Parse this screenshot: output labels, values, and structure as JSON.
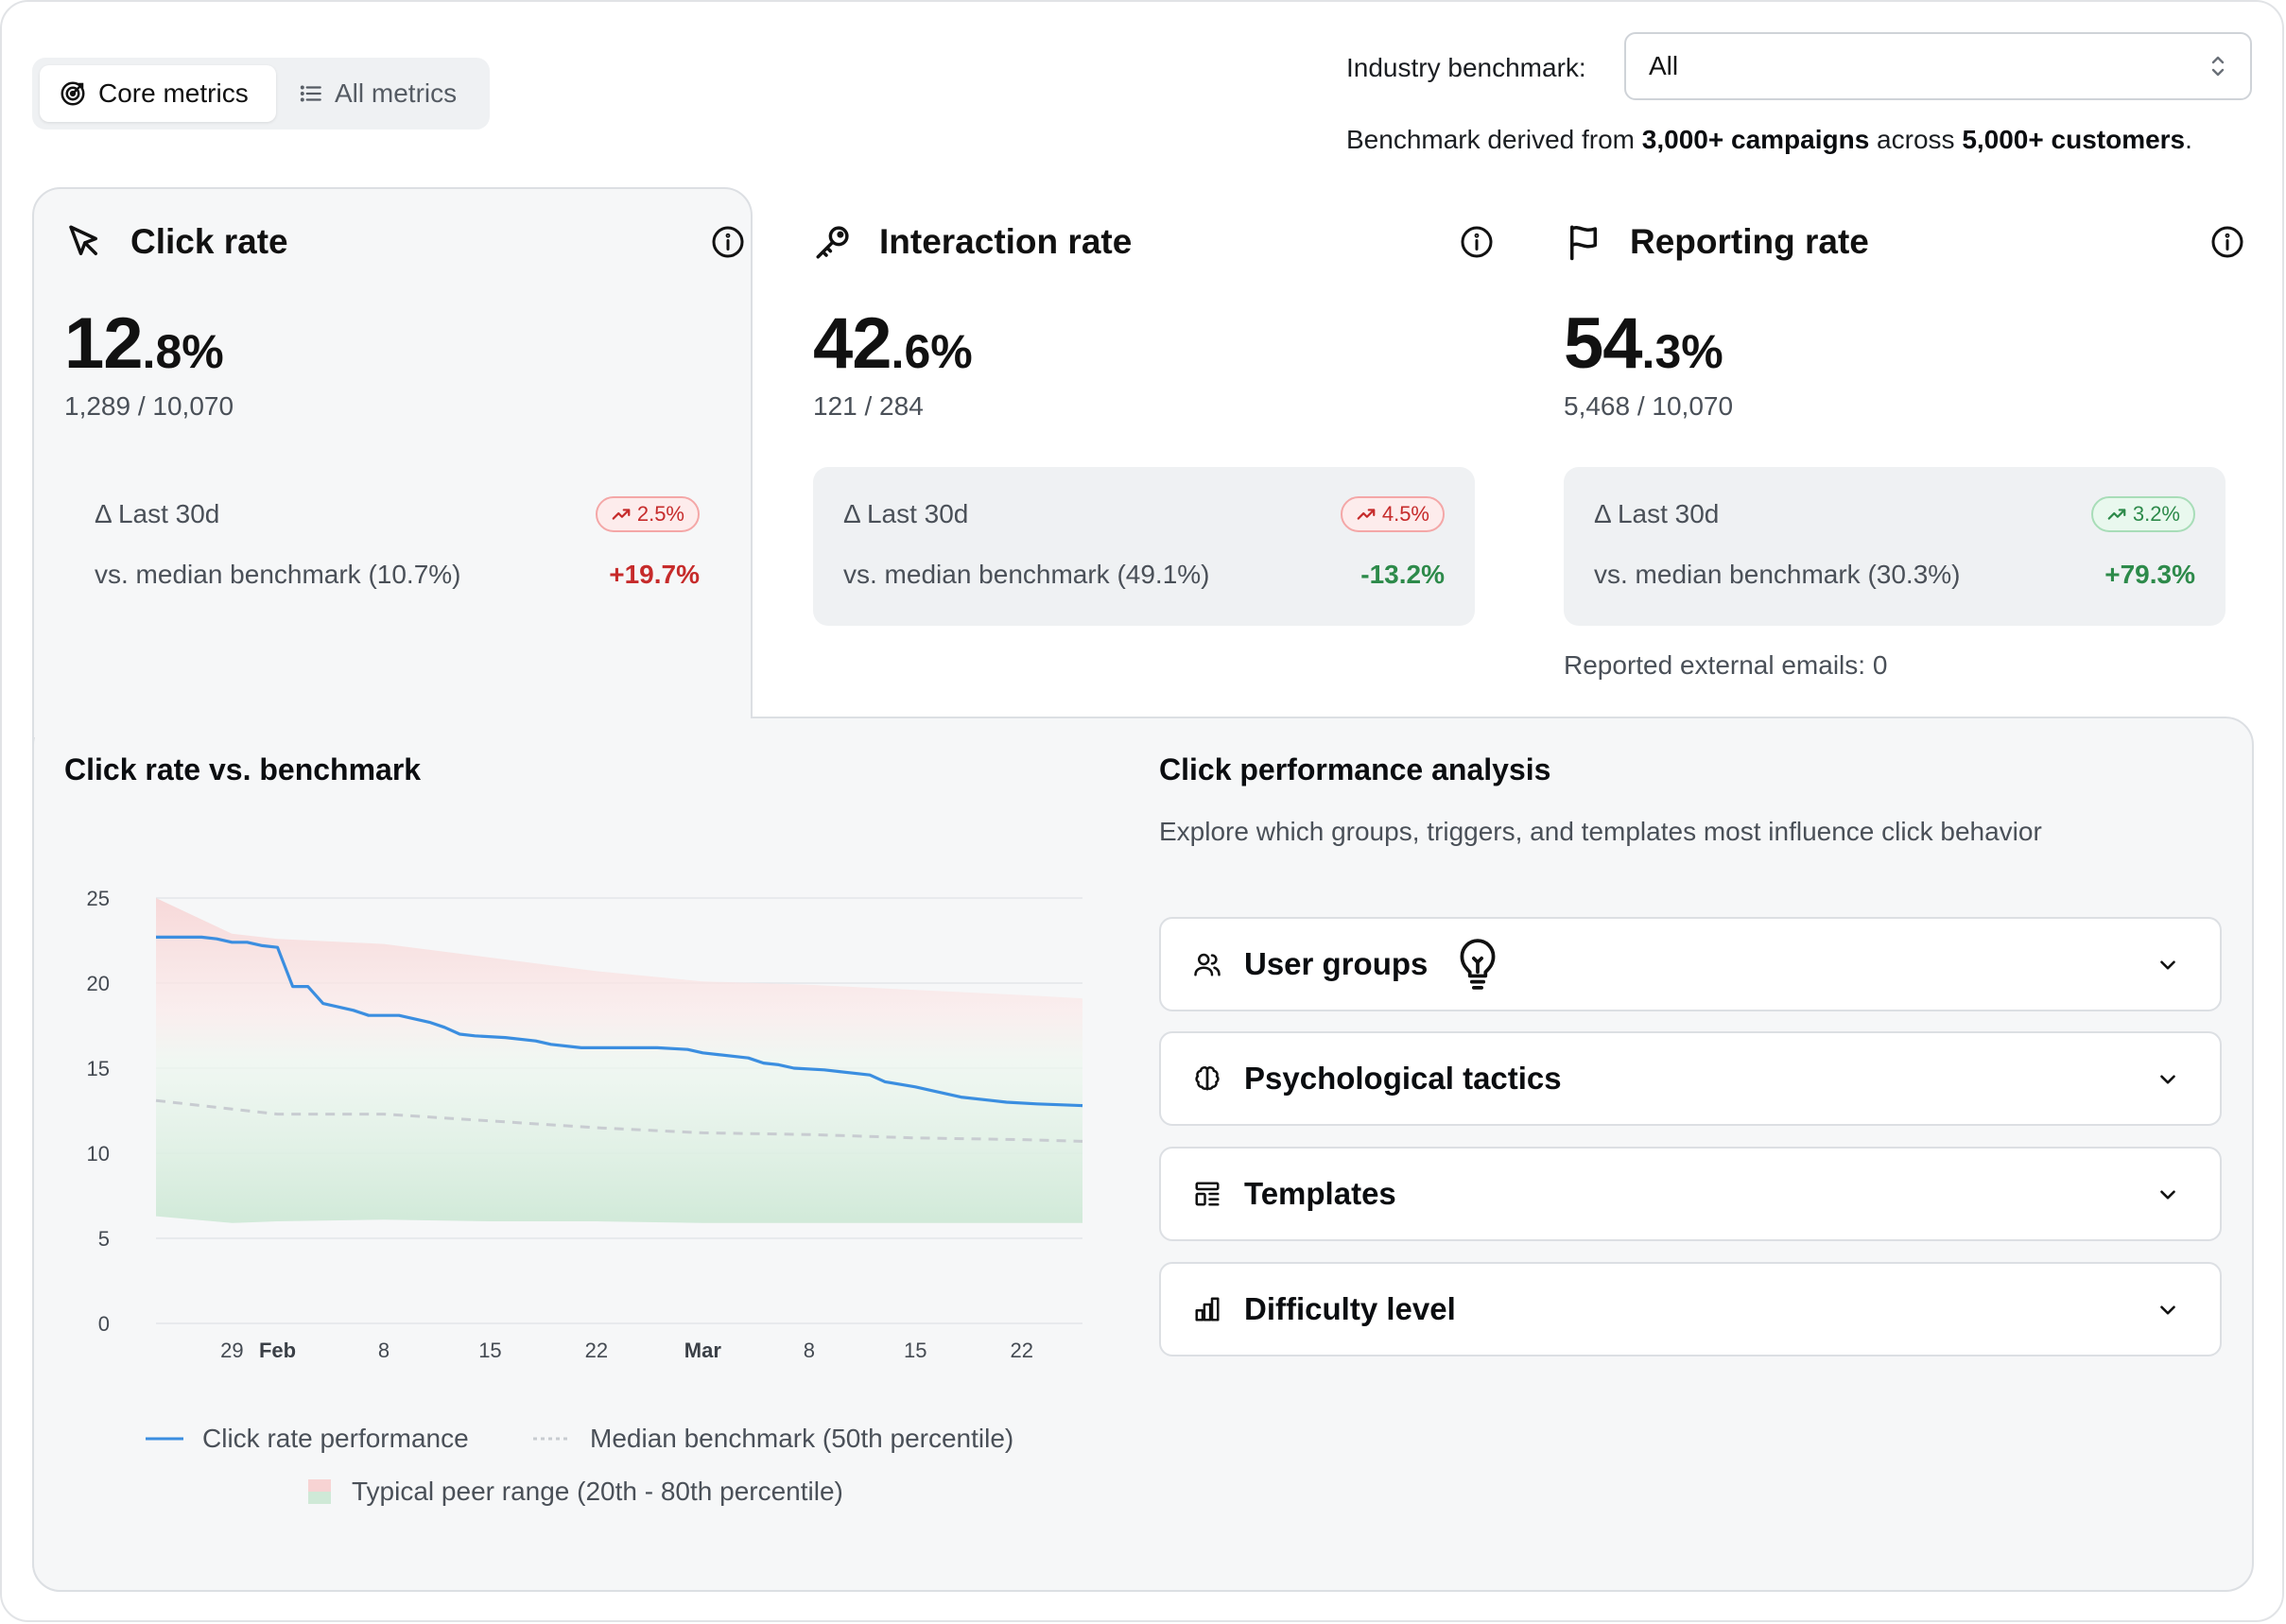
{
  "toggle": {
    "core": "Core metrics",
    "all": "All metrics"
  },
  "benchmark": {
    "label": "Industry benchmark:",
    "value": "All",
    "note_prefix": "Benchmark derived from ",
    "note_campaigns": "3,000+ campaigns",
    "note_mid": " across ",
    "note_customers": "5,000+ customers",
    "note_suffix": "."
  },
  "metrics": [
    {
      "title": "Click rate",
      "icon": "cursor-icon",
      "value_int": "12",
      "value_dec": ".8%",
      "ratio": "1,289 / 10,070",
      "last30_label": "Δ Last 30d",
      "last30_badge": "2.5%",
      "badge_color": "red",
      "vs_label": "vs. median benchmark (10.7%)",
      "vs_value": "+19.7%",
      "vs_color": "red"
    },
    {
      "title": "Interaction rate",
      "icon": "key-icon",
      "value_int": "42",
      "value_dec": ".6%",
      "ratio": "121 / 284",
      "last30_label": "Δ Last 30d",
      "last30_badge": "4.5%",
      "badge_color": "red",
      "vs_label": "vs. median benchmark (49.1%)",
      "vs_value": "-13.2%",
      "vs_color": "green"
    },
    {
      "title": "Reporting rate",
      "icon": "flag-icon",
      "value_int": "54",
      "value_dec": ".3%",
      "ratio": "5,468 / 10,070",
      "last30_label": "Δ Last 30d",
      "last30_badge": "3.2%",
      "badge_color": "green",
      "vs_label": "vs. median benchmark (30.3%)",
      "vs_value": "+79.3%",
      "vs_color": "green",
      "extra": "Reported external emails: 0"
    }
  ],
  "chart_section": {
    "title": "Click rate vs. benchmark",
    "legend": {
      "performance": "Click rate performance",
      "median": "Median benchmark (50th percentile)",
      "range": "Typical peer range (20th - 80th percentile)"
    }
  },
  "analysis": {
    "title": "Click performance analysis",
    "subtitle": "Explore which groups, triggers, and templates most influence click behavior",
    "items": [
      {
        "label": "User groups",
        "icon": "users-icon"
      },
      {
        "label": "Psychological tactics",
        "icon": "brain-icon"
      },
      {
        "label": "Templates",
        "icon": "template-icon"
      },
      {
        "label": "Difficulty level",
        "icon": "bar-chart-icon"
      }
    ]
  },
  "chart_data": {
    "type": "line",
    "title": "Click rate vs. benchmark",
    "xlabel": "",
    "ylabel": "",
    "ylim": [
      0,
      25
    ],
    "yticks": [
      0,
      5,
      10,
      15,
      20,
      25
    ],
    "xlim": [
      "Jan 24",
      "Mar 26"
    ],
    "xticks": [
      {
        "at": "Jan 29",
        "label": "29",
        "bold": false
      },
      {
        "at": "Feb 1",
        "label": "Feb",
        "bold": true
      },
      {
        "at": "Feb 8",
        "label": "8",
        "bold": false
      },
      {
        "at": "Feb 15",
        "label": "15",
        "bold": false
      },
      {
        "at": "Feb 22",
        "label": "22",
        "bold": false
      },
      {
        "at": "Mar 1",
        "label": "Mar",
        "bold": true
      },
      {
        "at": "Mar 8",
        "label": "8",
        "bold": false
      },
      {
        "at": "Mar 15",
        "label": "15",
        "bold": false
      },
      {
        "at": "Mar 22",
        "label": "22",
        "bold": false
      }
    ],
    "grid": true,
    "series": [
      {
        "name": "Click rate performance",
        "color": "#3b8ee0",
        "style": "solid",
        "x": [
          "Jan 24",
          "Jan 27",
          "Jan 28",
          "Jan 29",
          "Jan 30",
          "Jan 31",
          "Feb 1",
          "Feb 2",
          "Feb 3",
          "Feb 4",
          "Feb 5",
          "Feb 6",
          "Feb 7",
          "Feb 9",
          "Feb 10",
          "Feb 11",
          "Feb 12",
          "Feb 13",
          "Feb 14",
          "Feb 16",
          "Feb 18",
          "Feb 19",
          "Feb 21",
          "Feb 22",
          "Feb 24",
          "Feb 26",
          "Feb 28",
          "Mar 1",
          "Mar 2",
          "Mar 4",
          "Mar 5",
          "Mar 6",
          "Mar 7",
          "Mar 9",
          "Mar 10",
          "Mar 12",
          "Mar 13",
          "Mar 15",
          "Mar 16",
          "Mar 18",
          "Mar 20",
          "Mar 21",
          "Mar 23",
          "Mar 26"
        ],
        "y": [
          22.7,
          22.7,
          22.6,
          22.4,
          22.4,
          22.2,
          22.1,
          19.8,
          19.8,
          18.8,
          18.6,
          18.4,
          18.1,
          18.1,
          17.9,
          17.7,
          17.4,
          17.0,
          16.9,
          16.8,
          16.6,
          16.4,
          16.2,
          16.2,
          16.2,
          16.2,
          16.1,
          15.9,
          15.8,
          15.6,
          15.3,
          15.2,
          15.0,
          14.9,
          14.8,
          14.6,
          14.2,
          13.9,
          13.7,
          13.3,
          13.1,
          13.0,
          12.9,
          12.8
        ]
      },
      {
        "name": "Median benchmark (50th percentile)",
        "color": "#c8ccd1",
        "style": "dashed",
        "x": [
          "Jan 24",
          "Jan 29",
          "Feb 1",
          "Feb 8",
          "Feb 15",
          "Feb 22",
          "Mar 1",
          "Mar 8",
          "Mar 15",
          "Mar 22",
          "Mar 26"
        ],
        "y": [
          13.1,
          12.6,
          12.3,
          12.3,
          11.9,
          11.5,
          11.2,
          11.1,
          10.9,
          10.8,
          10.7
        ]
      }
    ],
    "band": {
      "name": "Typical peer range (20th - 80th percentile)",
      "x": [
        "Jan 24",
        "Jan 29",
        "Feb 1",
        "Feb 8",
        "Feb 15",
        "Feb 22",
        "Mar 1",
        "Mar 8",
        "Mar 15",
        "Mar 22",
        "Mar 26"
      ],
      "upper": [
        25.0,
        22.9,
        22.6,
        22.3,
        21.5,
        20.7,
        20.1,
        19.9,
        19.6,
        19.3,
        19.1
      ],
      "lower": [
        6.3,
        5.9,
        6.0,
        6.1,
        6.0,
        6.0,
        5.9,
        5.9,
        5.9,
        5.9,
        5.9
      ]
    }
  }
}
